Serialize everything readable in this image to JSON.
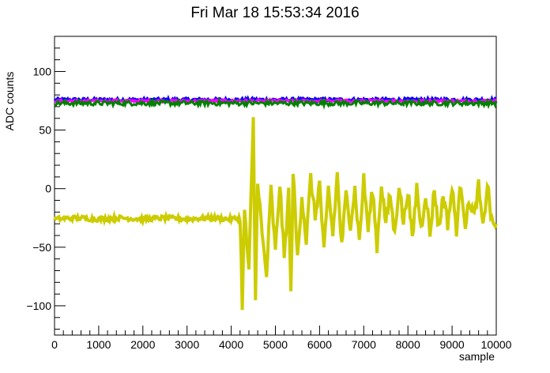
{
  "chart_data": {
    "type": "line",
    "title": "Fri Mar 18 15:53:34 2016",
    "xlabel": "sample",
    "ylabel": "ADC counts",
    "xlim": [
      0,
      10000
    ],
    "ylim": [
      -125,
      130
    ],
    "x_ticks": [
      "0",
      "1000",
      "2000",
      "3000",
      "4000",
      "5000",
      "6000",
      "7000",
      "8000",
      "9000",
      "10000"
    ],
    "y_ticks": [
      "100",
      "50",
      "0",
      "−50",
      "−100"
    ],
    "grid": false,
    "series": [
      {
        "color": "#0000ff",
        "level": 76,
        "noise": 1.5
      },
      {
        "color": "#ff00ff",
        "level": 75,
        "noise": 1.0
      },
      {
        "color": "#008000",
        "level": 73,
        "noise": 2.0
      },
      {
        "color": "#cccc00",
        "x": [
          0,
          500,
          1000,
          1500,
          2000,
          2500,
          3000,
          3500,
          4000,
          4200,
          4250,
          4300,
          4400,
          4500,
          4550,
          4600,
          4700,
          4800,
          4900,
          5000,
          5100,
          5200,
          5300,
          5350,
          5400,
          5500,
          5600,
          5700,
          5800,
          5900,
          6000,
          6100,
          6200,
          6300,
          6400,
          6500,
          6600,
          6700,
          6800,
          6900,
          7000,
          7100,
          7200,
          7300,
          7400,
          7500,
          7600,
          7700,
          7800,
          7900,
          8000,
          8100,
          8200,
          8300,
          8400,
          8500,
          8600,
          8700,
          8800,
          8900,
          9000,
          9100,
          9200,
          9300,
          9400,
          9500,
          9600,
          9700,
          9800,
          9900,
          10000
        ],
        "y": [
          -26,
          -25,
          -26,
          -25,
          -26,
          -25,
          -26,
          -25,
          -26,
          -25,
          -98,
          -20,
          -70,
          58,
          -95,
          10,
          -40,
          -75,
          0,
          -55,
          5,
          -60,
          -3,
          -92,
          15,
          -60,
          -5,
          -45,
          10,
          -25,
          5,
          -55,
          0,
          -40,
          12,
          -50,
          -5,
          -30,
          0,
          -45,
          8,
          -35,
          0,
          -50,
          5,
          -30,
          -5,
          -40,
          5,
          -30,
          0,
          -45,
          2,
          -35,
          -3,
          -40,
          0,
          -35,
          -5,
          -30,
          0,
          -35,
          5,
          -30,
          -10,
          -25,
          2,
          -35,
          5,
          -30,
          -30
        ]
      }
    ]
  }
}
